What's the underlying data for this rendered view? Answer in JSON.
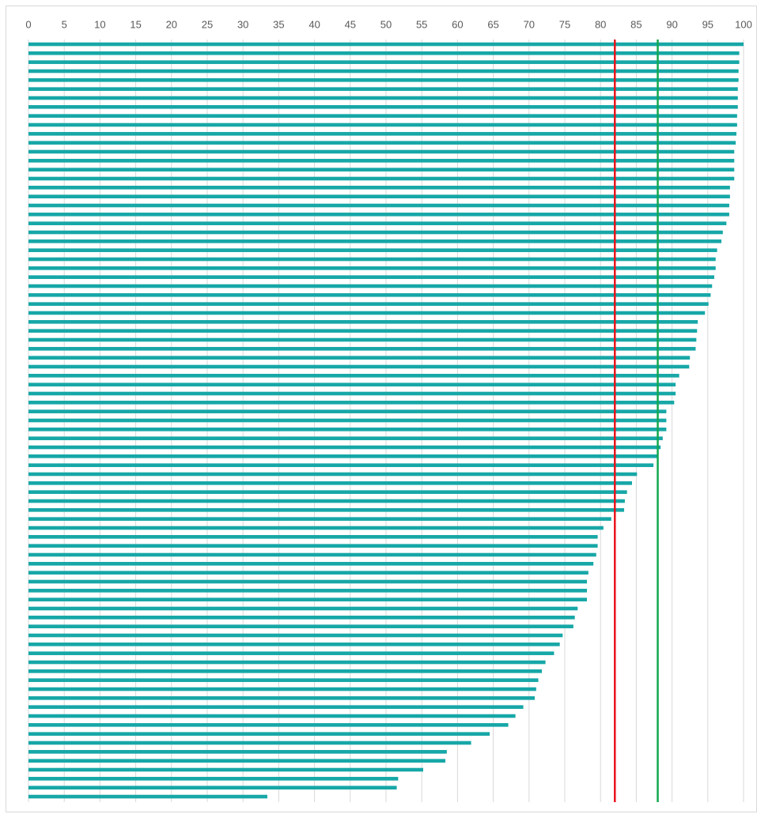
{
  "chart_data": {
    "type": "barh",
    "values": [
      100,
      99.4,
      99.4,
      99.3,
      99.3,
      99.2,
      99.2,
      99.2,
      99.1,
      99.1,
      99.0,
      98.9,
      98.7,
      98.7,
      98.7,
      98.7,
      98.1,
      98.1,
      98.0,
      98.0,
      97.6,
      97.1,
      96.9,
      96.3,
      96.1,
      96.1,
      95.9,
      95.6,
      95.4,
      95.1,
      94.6,
      93.6,
      93.5,
      93.4,
      93.3,
      92.5,
      92.4,
      91.0,
      90.5,
      90.5,
      90.3,
      89.2,
      89.2,
      89.2,
      88.7,
      88.4,
      88.1,
      87.4,
      85.1,
      84.4,
      83.7,
      83.4,
      83.3,
      81.5,
      80.4,
      79.6,
      79.6,
      79.4,
      79.0,
      78.3,
      78.1,
      78.1,
      78.1,
      76.8,
      76.4,
      76.2,
      74.7,
      74.3,
      73.5,
      72.3,
      71.8,
      71.3,
      71.0,
      70.8,
      69.2,
      68.1,
      67.1,
      64.5,
      61.9,
      58.5,
      58.3,
      55.2,
      51.7,
      51.5,
      33.4
    ],
    "color": "#17a7a7",
    "xlim": [
      0,
      100
    ],
    "xticks": [
      0,
      5,
      10,
      15,
      20,
      25,
      30,
      35,
      40,
      45,
      50,
      55,
      60,
      65,
      70,
      75,
      80,
      85,
      90,
      95,
      100
    ],
    "grid": true,
    "reference_lines": [
      {
        "value": 82,
        "color": "#e8131b"
      },
      {
        "value": 88,
        "color": "#12a850"
      }
    ]
  }
}
